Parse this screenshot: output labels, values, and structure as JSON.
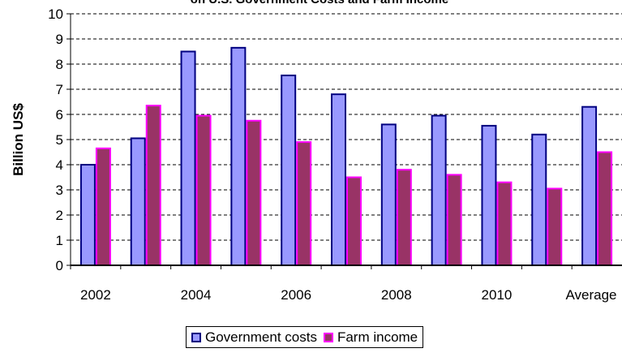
{
  "chart_data": {
    "type": "bar",
    "title": "on U.S. Government Costs and  Farm Income",
    "ylabel": "Billion US$",
    "xlabel": "",
    "ylim": [
      0,
      10
    ],
    "yticks": [
      0,
      1,
      2,
      3,
      4,
      5,
      6,
      7,
      8,
      9,
      10
    ],
    "grid": true,
    "categories": [
      "2002",
      "",
      "2004",
      "",
      "2006",
      "",
      "2008",
      "",
      "2010",
      "",
      "Average"
    ],
    "series": [
      {
        "name": "Government costs",
        "color": "#9999ff",
        "edge": "#000080",
        "values": [
          4.0,
          5.05,
          8.5,
          8.65,
          7.55,
          6.8,
          5.6,
          5.95,
          5.55,
          5.2,
          6.3
        ]
      },
      {
        "name": "Farm income",
        "color": "#993366",
        "edge": "#ff00ff",
        "values": [
          4.65,
          6.35,
          5.95,
          5.75,
          4.9,
          3.5,
          3.8,
          3.6,
          3.3,
          3.05,
          4.5
        ]
      }
    ],
    "legend_position": "bottom"
  }
}
